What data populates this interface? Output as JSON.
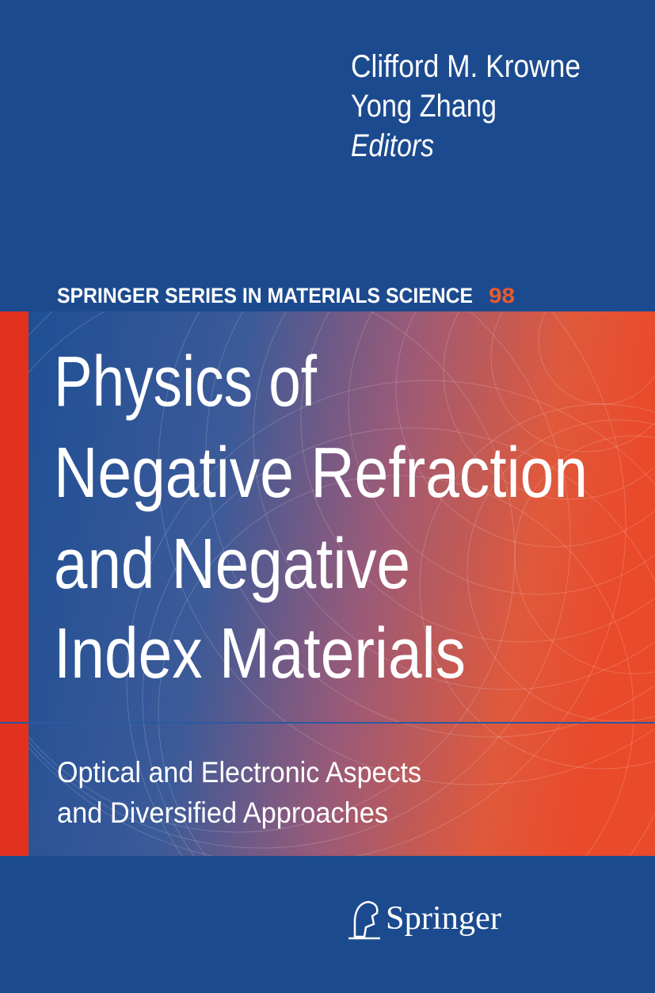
{
  "editors": [
    "Clifford M. Krowne",
    "Yong Zhang"
  ],
  "editors_role": "Editors",
  "series": {
    "name": "SPRINGER SERIES IN MATERIALS SCIENCE",
    "number": 98
  },
  "title": [
    "Physics of",
    "Negative Refraction",
    "and Negative",
    "Index Materials"
  ],
  "subtitle": [
    "Optical and Electronic Aspects",
    "and Diversified Approaches"
  ],
  "publisher": "Springer"
}
